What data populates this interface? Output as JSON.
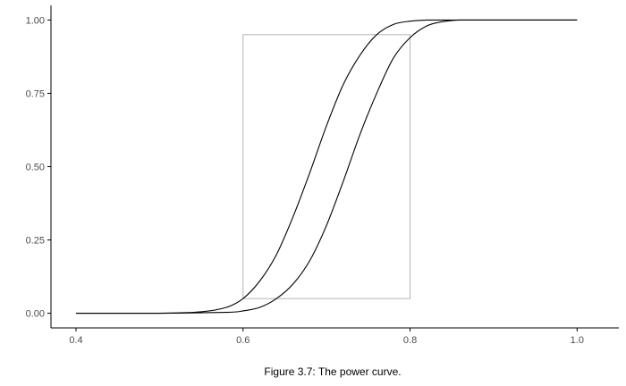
{
  "caption": "Figure 3.7: The power curve.",
  "chart_data": {
    "type": "line",
    "title": "",
    "xlabel": "",
    "ylabel": "",
    "xlim": [
      0.37,
      1.05
    ],
    "ylim": [
      -0.05,
      1.05
    ],
    "grid": false,
    "x_ticks": [
      {
        "value": 0.4,
        "label": "0.4"
      },
      {
        "value": 0.6,
        "label": "0.6"
      },
      {
        "value": 0.8,
        "label": "0.8"
      },
      {
        "value": 1.0,
        "label": "1.0"
      }
    ],
    "y_ticks": [
      {
        "value": 0.0,
        "label": "0.00"
      },
      {
        "value": 0.25,
        "label": "0.25"
      },
      {
        "value": 0.5,
        "label": "0.50"
      },
      {
        "value": 0.75,
        "label": "0.75"
      },
      {
        "value": 1.0,
        "label": "1.00"
      }
    ],
    "series": [
      {
        "color": "#000000",
        "x": [
          0.4,
          0.5,
          0.55,
          0.58,
          0.6,
          0.62,
          0.64,
          0.66,
          0.68,
          0.7,
          0.72,
          0.74,
          0.76,
          0.78,
          0.8,
          0.82,
          0.85,
          0.9,
          1.0
        ],
        "y": [
          0.0,
          0.0,
          0.005,
          0.02,
          0.05,
          0.11,
          0.2,
          0.33,
          0.48,
          0.64,
          0.78,
          0.88,
          0.95,
          0.985,
          0.996,
          1.0,
          1.0,
          1.0,
          1.0
        ]
      },
      {
        "color": "#000000",
        "x": [
          0.4,
          0.5,
          0.58,
          0.6,
          0.62,
          0.64,
          0.66,
          0.68,
          0.7,
          0.72,
          0.74,
          0.76,
          0.78,
          0.8,
          0.82,
          0.84,
          0.86,
          0.9,
          1.0
        ],
        "y": [
          0.0,
          0.0,
          0.003,
          0.008,
          0.02,
          0.05,
          0.1,
          0.18,
          0.3,
          0.45,
          0.61,
          0.75,
          0.87,
          0.94,
          0.98,
          0.995,
          1.0,
          1.0,
          1.0
        ]
      }
    ],
    "reference_box": {
      "x_range": [
        0.6,
        0.8
      ],
      "y_range": [
        0.05,
        0.95
      ],
      "color": "#b3b3b3"
    },
    "axis_color": "#000000",
    "tick_label_color": "#4d4d4d"
  }
}
